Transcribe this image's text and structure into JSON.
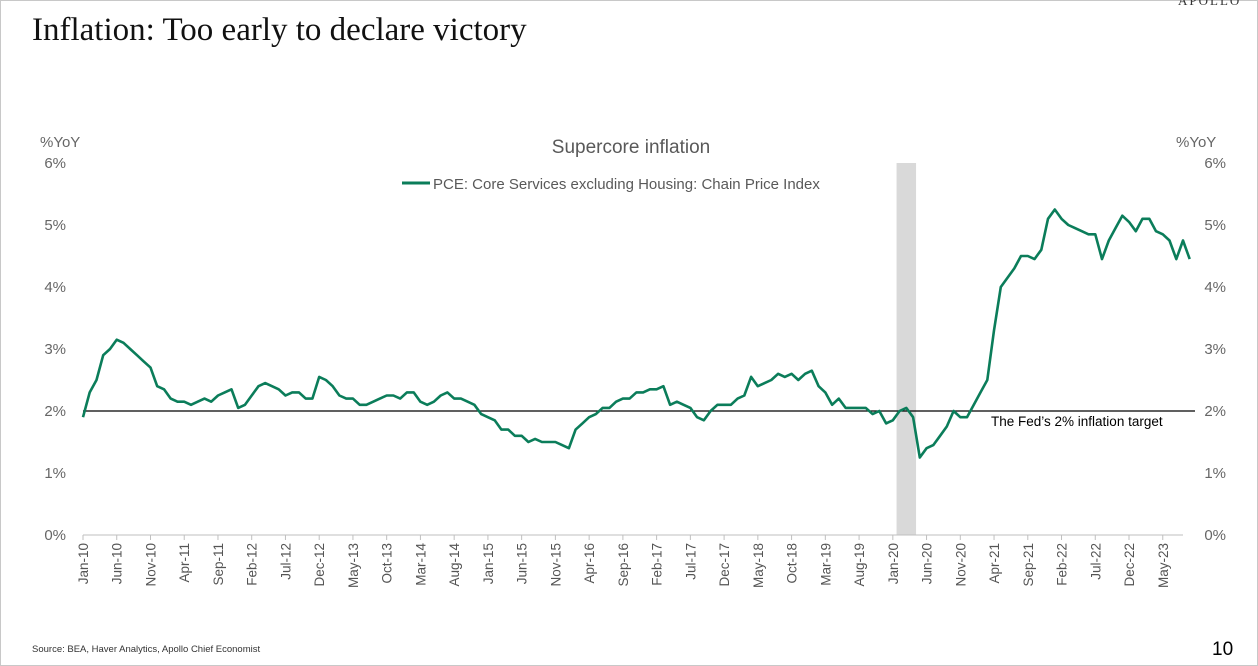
{
  "slide": {
    "title": "Inflation: Too early to declare victory",
    "brand": "APOLLO",
    "source": "Source: BEA, Haver Analytics, Apollo Chief Economist",
    "page_number": "10"
  },
  "colors": {
    "series": "#0b7d5a",
    "recession_band": "#d9d9d9",
    "reference_line": "#000000"
  },
  "chart_data": {
    "type": "line",
    "title": "Supercore inflation",
    "ylabel_left": "%YoY",
    "ylabel_right": "%YoY",
    "ylim": [
      0,
      6
    ],
    "yticks": [
      "0%",
      "1%",
      "2%",
      "3%",
      "4%",
      "5%",
      "6%"
    ],
    "grid": false,
    "legend_position": "top-center",
    "xtick_labels": [
      "Jan-10",
      "Jun-10",
      "Nov-10",
      "Apr-11",
      "Sep-11",
      "Feb-12",
      "Jul-12",
      "Dec-12",
      "May-13",
      "Oct-13",
      "Mar-14",
      "Aug-14",
      "Jan-15",
      "Jun-15",
      "Nov-15",
      "Apr-16",
      "Sep-16",
      "Feb-17",
      "Jul-17",
      "Dec-17",
      "May-18",
      "Oct-18",
      "Mar-19",
      "Aug-19",
      "Jan-20",
      "Jun-20",
      "Nov-20",
      "Apr-21",
      "Sep-21",
      "Feb-22",
      "Jul-22",
      "Dec-22",
      "May-23"
    ],
    "x_start": "Jan-10",
    "x_end": "Aug-23",
    "shaded_period": {
      "start": "Feb-20",
      "end": "Apr-20"
    },
    "reference_line": {
      "value": 2,
      "label": "The Fed’s 2% inflation target"
    },
    "series": [
      {
        "name": "PCE: Core Services excluding Housing: Chain Price Index",
        "values": [
          1.9,
          2.3,
          2.5,
          2.9,
          3.0,
          3.15,
          3.1,
          3.0,
          2.9,
          2.8,
          2.7,
          2.4,
          2.35,
          2.2,
          2.15,
          2.15,
          2.1,
          2.15,
          2.2,
          2.15,
          2.25,
          2.3,
          2.35,
          2.05,
          2.1,
          2.25,
          2.4,
          2.45,
          2.4,
          2.35,
          2.25,
          2.3,
          2.3,
          2.2,
          2.2,
          2.55,
          2.5,
          2.4,
          2.25,
          2.2,
          2.2,
          2.1,
          2.1,
          2.15,
          2.2,
          2.25,
          2.25,
          2.2,
          2.3,
          2.3,
          2.15,
          2.1,
          2.15,
          2.25,
          2.3,
          2.2,
          2.2,
          2.15,
          2.1,
          1.95,
          1.9,
          1.85,
          1.7,
          1.7,
          1.6,
          1.6,
          1.5,
          1.55,
          1.5,
          1.5,
          1.5,
          1.45,
          1.4,
          1.7,
          1.8,
          1.9,
          1.95,
          2.05,
          2.05,
          2.15,
          2.2,
          2.2,
          2.3,
          2.3,
          2.35,
          2.35,
          2.4,
          2.1,
          2.15,
          2.1,
          2.05,
          1.9,
          1.85,
          2.0,
          2.1,
          2.1,
          2.1,
          2.2,
          2.25,
          2.55,
          2.4,
          2.45,
          2.5,
          2.6,
          2.55,
          2.6,
          2.5,
          2.6,
          2.65,
          2.4,
          2.3,
          2.1,
          2.2,
          2.05,
          2.05,
          2.05,
          2.05,
          1.95,
          2.0,
          1.8,
          1.85,
          2.0,
          2.05,
          1.9,
          1.25,
          1.4,
          1.45,
          1.6,
          1.75,
          2.0,
          1.9,
          1.9,
          2.1,
          2.3,
          2.5,
          3.3,
          4.0,
          4.15,
          4.3,
          4.5,
          4.5,
          4.45,
          4.6,
          5.1,
          5.25,
          5.1,
          5.0,
          4.95,
          4.9,
          4.85,
          4.85,
          4.45,
          4.75,
          4.95,
          5.15,
          5.05,
          4.9,
          5.1,
          5.1,
          4.9,
          4.85,
          4.75,
          4.45,
          4.75,
          4.45
        ]
      }
    ]
  }
}
